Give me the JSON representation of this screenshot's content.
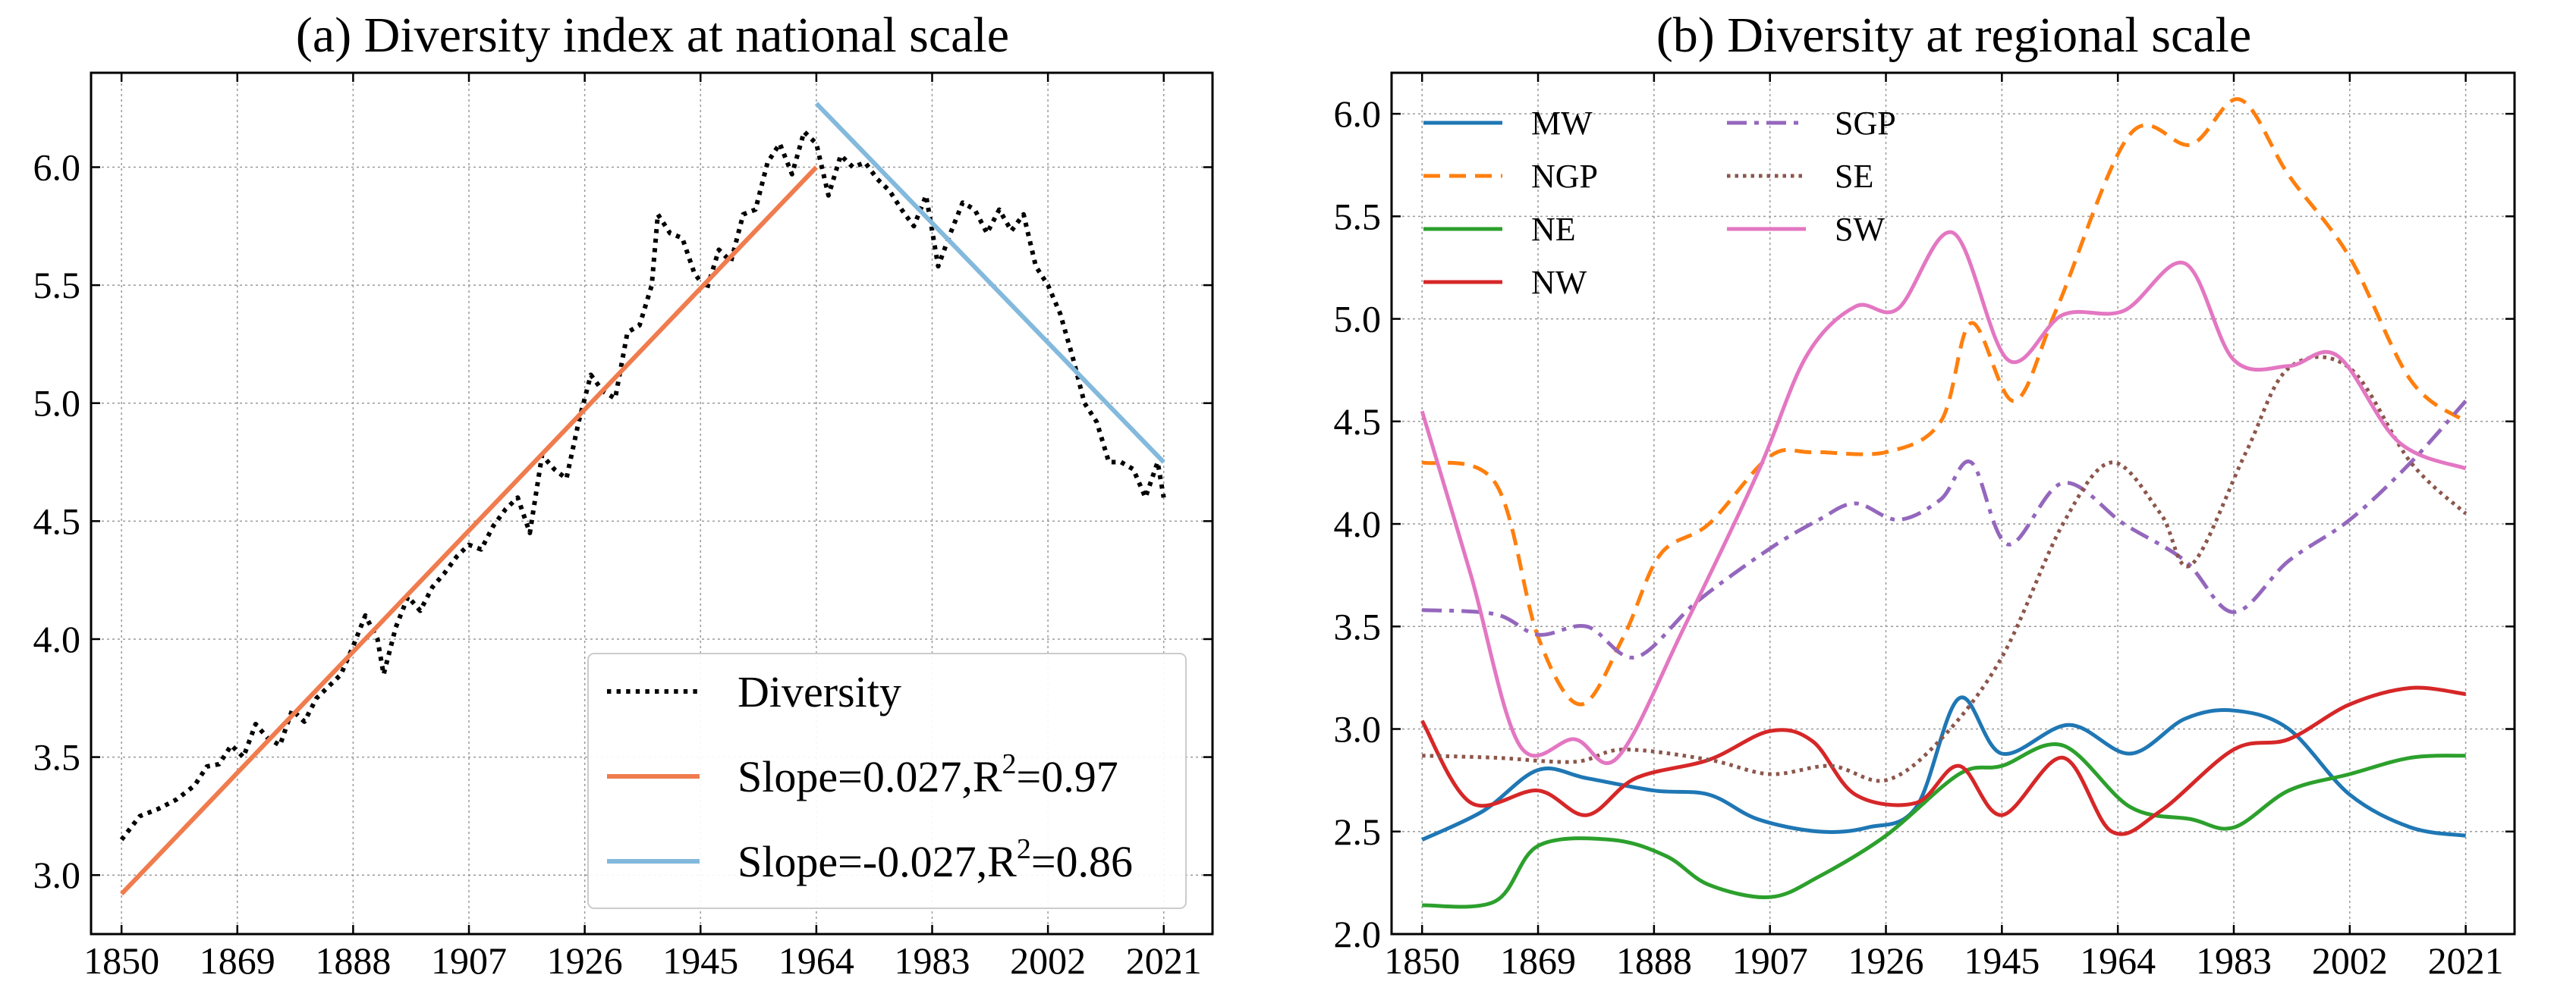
{
  "chart_data": [
    {
      "type": "line",
      "title": "(a) Diversity index at national scale",
      "xlabel": "",
      "ylabel": "",
      "xlim": [
        1845,
        2029
      ],
      "ylim": [
        2.75,
        6.4
      ],
      "xticks": [
        1850,
        1869,
        1888,
        1907,
        1926,
        1945,
        1964,
        1983,
        2002,
        2021
      ],
      "yticks": [
        3.0,
        3.5,
        4.0,
        4.5,
        5.0,
        5.5,
        6.0
      ],
      "ytick_labels": [
        "3.0",
        "3.5",
        "4.0",
        "4.5",
        "5.0",
        "5.5",
        "6.0"
      ],
      "grid": true,
      "legend_position": "bottom-right",
      "series": [
        {
          "name": "Diversity",
          "style": "dotted",
          "color": "#000000",
          "points": [
            [
              1850,
              3.15
            ],
            [
              1853,
              3.25
            ],
            [
              1856,
              3.28
            ],
            [
              1859,
              3.32
            ],
            [
              1862,
              3.38
            ],
            [
              1864,
              3.46
            ],
            [
              1866,
              3.47
            ],
            [
              1868,
              3.55
            ],
            [
              1870,
              3.5
            ],
            [
              1872,
              3.64
            ],
            [
              1874,
              3.58
            ],
            [
              1876,
              3.55
            ],
            [
              1878,
              3.7
            ],
            [
              1880,
              3.65
            ],
            [
              1882,
              3.75
            ],
            [
              1884,
              3.8
            ],
            [
              1886,
              3.85
            ],
            [
              1888,
              3.97
            ],
            [
              1890,
              4.1
            ],
            [
              1892,
              4.0
            ],
            [
              1893,
              3.85
            ],
            [
              1895,
              4.05
            ],
            [
              1897,
              4.18
            ],
            [
              1899,
              4.12
            ],
            [
              1901,
              4.22
            ],
            [
              1903,
              4.28
            ],
            [
              1905,
              4.35
            ],
            [
              1907,
              4.4
            ],
            [
              1909,
              4.38
            ],
            [
              1911,
              4.48
            ],
            [
              1913,
              4.55
            ],
            [
              1915,
              4.6
            ],
            [
              1917,
              4.45
            ],
            [
              1919,
              4.78
            ],
            [
              1921,
              4.72
            ],
            [
              1923,
              4.68
            ],
            [
              1925,
              4.92
            ],
            [
              1927,
              5.12
            ],
            [
              1929,
              5.05
            ],
            [
              1931,
              5.02
            ],
            [
              1933,
              5.3
            ],
            [
              1935,
              5.33
            ],
            [
              1937,
              5.5
            ],
            [
              1938,
              5.8
            ],
            [
              1940,
              5.72
            ],
            [
              1942,
              5.7
            ],
            [
              1944,
              5.55
            ],
            [
              1946,
              5.48
            ],
            [
              1948,
              5.65
            ],
            [
              1950,
              5.6
            ],
            [
              1952,
              5.8
            ],
            [
              1954,
              5.82
            ],
            [
              1956,
              6.02
            ],
            [
              1958,
              6.1
            ],
            [
              1960,
              5.97
            ],
            [
              1962,
              6.15
            ],
            [
              1964,
              6.1
            ],
            [
              1966,
              5.88
            ],
            [
              1968,
              6.05
            ],
            [
              1970,
              6.0
            ],
            [
              1972,
              6.02
            ],
            [
              1974,
              5.95
            ],
            [
              1976,
              5.9
            ],
            [
              1978,
              5.82
            ],
            [
              1980,
              5.75
            ],
            [
              1982,
              5.88
            ],
            [
              1984,
              5.58
            ],
            [
              1986,
              5.72
            ],
            [
              1988,
              5.85
            ],
            [
              1990,
              5.82
            ],
            [
              1992,
              5.72
            ],
            [
              1994,
              5.82
            ],
            [
              1996,
              5.73
            ],
            [
              1998,
              5.8
            ],
            [
              2000,
              5.58
            ],
            [
              2002,
              5.5
            ],
            [
              2004,
              5.38
            ],
            [
              2006,
              5.2
            ],
            [
              2008,
              5.0
            ],
            [
              2010,
              4.92
            ],
            [
              2012,
              4.75
            ],
            [
              2014,
              4.75
            ],
            [
              2016,
              4.72
            ],
            [
              2018,
              4.6
            ],
            [
              2020,
              4.75
            ],
            [
              2021,
              4.6
            ]
          ]
        },
        {
          "name": "Slope=0.027,R²=0.97",
          "style": "solid",
          "color": "#f07c4e",
          "points": [
            [
              1850,
              2.92
            ],
            [
              1964,
              6.0
            ]
          ]
        },
        {
          "name": "Slope=-0.027,R²=0.86",
          "style": "solid",
          "color": "#83b9dc",
          "points": [
            [
              1964,
              6.27
            ],
            [
              2021,
              4.75
            ]
          ]
        }
      ],
      "legend": [
        {
          "prefix": "Diversity",
          "sup": "",
          "suffix": ""
        },
        {
          "prefix": "Slope=0.027,R",
          "sup": "2",
          "suffix": "=0.97"
        },
        {
          "prefix": "Slope=-0.027,R",
          "sup": "2",
          "suffix": "=0.86"
        }
      ]
    },
    {
      "type": "line",
      "title": "(b) Diversity at regional scale",
      "xlabel": "",
      "ylabel": "",
      "xlim": [
        1845,
        2029
      ],
      "ylim": [
        2.0,
        6.2
      ],
      "xticks": [
        1850,
        1869,
        1888,
        1907,
        1926,
        1945,
        1964,
        1983,
        2002,
        2021
      ],
      "yticks": [
        2.0,
        2.5,
        3.0,
        3.5,
        4.0,
        4.5,
        5.0,
        5.5,
        6.0
      ],
      "ytick_labels": [
        "2.0",
        "2.5",
        "3.0",
        "3.5",
        "4.0",
        "4.5",
        "5.0",
        "5.5",
        "6.0"
      ],
      "grid": true,
      "legend_position": "top-left",
      "series": [
        {
          "name": "MW",
          "style": "solid",
          "color": "#1f77b4",
          "points": [
            [
              1850,
              2.46
            ],
            [
              1860,
              2.6
            ],
            [
              1869,
              2.8
            ],
            [
              1877,
              2.76
            ],
            [
              1888,
              2.7
            ],
            [
              1897,
              2.68
            ],
            [
              1905,
              2.56
            ],
            [
              1915,
              2.5
            ],
            [
              1923,
              2.52
            ],
            [
              1931,
              2.62
            ],
            [
              1938,
              3.15
            ],
            [
              1945,
              2.88
            ],
            [
              1956,
              3.02
            ],
            [
              1966,
              2.88
            ],
            [
              1975,
              3.05
            ],
            [
              1983,
              3.09
            ],
            [
              1992,
              3.0
            ],
            [
              2002,
              2.68
            ],
            [
              2012,
              2.52
            ],
            [
              2021,
              2.48
            ]
          ]
        },
        {
          "name": "NGP",
          "style": "dashed",
          "color": "#ff7f0e",
          "points": [
            [
              1850,
              4.3
            ],
            [
              1862,
              4.2
            ],
            [
              1869,
              3.45
            ],
            [
              1876,
              3.12
            ],
            [
              1883,
              3.45
            ],
            [
              1889,
              3.85
            ],
            [
              1897,
              4.0
            ],
            [
              1907,
              4.33
            ],
            [
              1914,
              4.35
            ],
            [
              1926,
              4.35
            ],
            [
              1935,
              4.5
            ],
            [
              1940,
              4.98
            ],
            [
              1947,
              4.6
            ],
            [
              1954,
              5.05
            ],
            [
              1966,
              5.9
            ],
            [
              1976,
              5.85
            ],
            [
              1984,
              6.07
            ],
            [
              1992,
              5.7
            ],
            [
              2002,
              5.3
            ],
            [
              2012,
              4.7
            ],
            [
              2021,
              4.5
            ]
          ]
        },
        {
          "name": "NE",
          "style": "solid",
          "color": "#2ca02c",
          "points": [
            [
              1850,
              2.14
            ],
            [
              1862,
              2.16
            ],
            [
              1869,
              2.43
            ],
            [
              1881,
              2.46
            ],
            [
              1890,
              2.38
            ],
            [
              1897,
              2.24
            ],
            [
              1907,
              2.18
            ],
            [
              1915,
              2.28
            ],
            [
              1926,
              2.48
            ],
            [
              1938,
              2.78
            ],
            [
              1945,
              2.82
            ],
            [
              1955,
              2.92
            ],
            [
              1966,
              2.62
            ],
            [
              1976,
              2.56
            ],
            [
              1983,
              2.52
            ],
            [
              1992,
              2.7
            ],
            [
              2002,
              2.78
            ],
            [
              2012,
              2.86
            ],
            [
              2021,
              2.87
            ]
          ]
        },
        {
          "name": "NW",
          "style": "solid",
          "color": "#d62728",
          "points": [
            [
              1850,
              3.04
            ],
            [
              1858,
              2.64
            ],
            [
              1869,
              2.7
            ],
            [
              1877,
              2.58
            ],
            [
              1885,
              2.76
            ],
            [
              1897,
              2.85
            ],
            [
              1907,
              2.99
            ],
            [
              1914,
              2.94
            ],
            [
              1921,
              2.68
            ],
            [
              1931,
              2.64
            ],
            [
              1938,
              2.82
            ],
            [
              1945,
              2.58
            ],
            [
              1955,
              2.86
            ],
            [
              1963,
              2.5
            ],
            [
              1971,
              2.6
            ],
            [
              1983,
              2.9
            ],
            [
              1992,
              2.95
            ],
            [
              2002,
              3.12
            ],
            [
              2012,
              3.2
            ],
            [
              2021,
              3.17
            ]
          ]
        },
        {
          "name": "SGP",
          "style": "dashdot",
          "color": "#9467bd",
          "points": [
            [
              1850,
              3.58
            ],
            [
              1862,
              3.56
            ],
            [
              1869,
              3.46
            ],
            [
              1877,
              3.5
            ],
            [
              1885,
              3.35
            ],
            [
              1895,
              3.62
            ],
            [
              1907,
              3.88
            ],
            [
              1915,
              4.02
            ],
            [
              1921,
              4.1
            ],
            [
              1928,
              4.02
            ],
            [
              1935,
              4.12
            ],
            [
              1940,
              4.3
            ],
            [
              1946,
              3.9
            ],
            [
              1955,
              4.2
            ],
            [
              1965,
              4.0
            ],
            [
              1975,
              3.82
            ],
            [
              1983,
              3.57
            ],
            [
              1992,
              3.82
            ],
            [
              2002,
              4.02
            ],
            [
              2012,
              4.3
            ],
            [
              2021,
              4.6
            ]
          ]
        },
        {
          "name": "SE",
          "style": "dotted",
          "color": "#8c564b",
          "points": [
            [
              1850,
              2.87
            ],
            [
              1862,
              2.86
            ],
            [
              1875,
              2.84
            ],
            [
              1883,
              2.9
            ],
            [
              1897,
              2.85
            ],
            [
              1907,
              2.78
            ],
            [
              1917,
              2.82
            ],
            [
              1926,
              2.75
            ],
            [
              1935,
              2.95
            ],
            [
              1945,
              3.35
            ],
            [
              1955,
              4.0
            ],
            [
              1963,
              4.3
            ],
            [
              1971,
              4.05
            ],
            [
              1976,
              3.8
            ],
            [
              1985,
              4.35
            ],
            [
              1992,
              4.76
            ],
            [
              2002,
              4.76
            ],
            [
              2012,
              4.3
            ],
            [
              2021,
              4.05
            ]
          ]
        },
        {
          "name": "SW",
          "style": "solid",
          "color": "#e377c2",
          "points": [
            [
              1850,
              4.55
            ],
            [
              1858,
              3.75
            ],
            [
              1866,
              2.92
            ],
            [
              1875,
              2.95
            ],
            [
              1882,
              2.86
            ],
            [
              1893,
              3.5
            ],
            [
              1905,
              4.25
            ],
            [
              1913,
              4.82
            ],
            [
              1921,
              5.06
            ],
            [
              1928,
              5.05
            ],
            [
              1937,
              5.42
            ],
            [
              1946,
              4.8
            ],
            [
              1955,
              5.02
            ],
            [
              1965,
              5.04
            ],
            [
              1975,
              5.27
            ],
            [
              1983,
              4.8
            ],
            [
              1992,
              4.77
            ],
            [
              2000,
              4.82
            ],
            [
              2010,
              4.4
            ],
            [
              2021,
              4.27
            ]
          ]
        }
      ]
    }
  ]
}
